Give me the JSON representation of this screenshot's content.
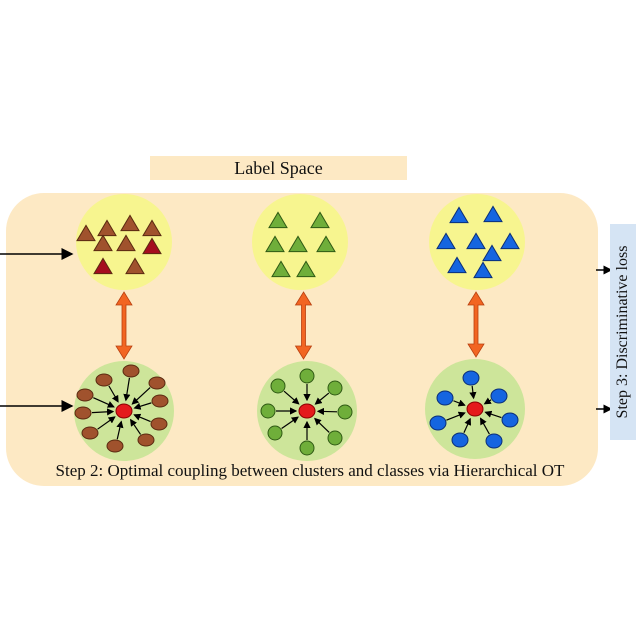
{
  "label_space": {
    "text": "Label Space"
  },
  "step2": {
    "text": "Step 2: Optimal coupling  between clusters and classes via Hierarchical OT"
  },
  "step3": {
    "text": "Step 3: Discriminative loss"
  },
  "colors": {
    "panel_bg": "#fde9c4",
    "class_circle": "#f7f58f",
    "cluster_circle": "#cde59a",
    "coupling_arrow": "#f26522",
    "center_point": "#e41a1c",
    "step3_box": "#d5e4f4"
  },
  "groups": [
    {
      "name": "brown",
      "fill": "#a0522d",
      "dark_fill": "#a50d1f",
      "stroke": "#5a2a10"
    },
    {
      "name": "green",
      "fill": "#6fae3a",
      "dark_fill": "#6fae3a",
      "stroke": "#2f5a14"
    },
    {
      "name": "blue",
      "fill": "#1565e0",
      "dark_fill": "#1565e0",
      "stroke": "#0a2f78"
    }
  ]
}
